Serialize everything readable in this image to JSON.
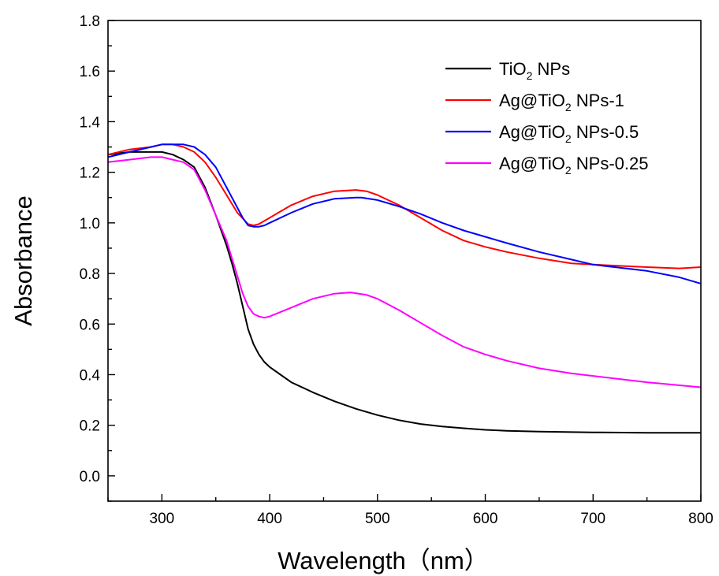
{
  "chart_data": {
    "type": "line",
    "xlabel": "Wavelength（nm）",
    "ylabel": "Absorbance",
    "xlim": [
      250,
      800
    ],
    "ylim": [
      -0.1,
      1.8
    ],
    "x_ticks": [
      "300",
      "400",
      "500",
      "600",
      "700",
      "800"
    ],
    "y_ticks": [
      "0.0",
      "0.2",
      "0.4",
      "0.6",
      "0.8",
      "1.0",
      "1.2",
      "1.4",
      "1.6",
      "1.8"
    ],
    "grid": false,
    "legend_position": "top-right",
    "series": [
      {
        "name": "TiO2 NPs",
        "label_main": "TiO",
        "label_sub": "2",
        "label_rest": " NPs",
        "color": "#000000",
        "x": [
          250,
          270,
          290,
          300,
          310,
          320,
          330,
          340,
          350,
          360,
          365,
          370,
          375,
          380,
          385,
          390,
          395,
          400,
          410,
          420,
          440,
          460,
          480,
          500,
          520,
          540,
          560,
          580,
          600,
          620,
          650,
          700,
          750,
          800
        ],
        "y": [
          1.27,
          1.28,
          1.28,
          1.28,
          1.27,
          1.25,
          1.22,
          1.14,
          1.03,
          0.91,
          0.84,
          0.76,
          0.67,
          0.58,
          0.52,
          0.48,
          0.45,
          0.43,
          0.4,
          0.37,
          0.33,
          0.295,
          0.265,
          0.24,
          0.22,
          0.205,
          0.195,
          0.188,
          0.182,
          0.178,
          0.175,
          0.172,
          0.17,
          0.17
        ]
      },
      {
        "name": "Ag@TiO2 NPs-1",
        "label_main": "Ag@TiO",
        "label_sub": "2",
        "label_rest": " NPs-1",
        "color": "#ff0000",
        "x": [
          250,
          270,
          290,
          300,
          310,
          320,
          330,
          340,
          350,
          360,
          370,
          380,
          385,
          390,
          400,
          420,
          440,
          460,
          480,
          490,
          500,
          520,
          540,
          560,
          580,
          600,
          620,
          650,
          680,
          700,
          750,
          780,
          800
        ],
        "y": [
          1.27,
          1.29,
          1.3,
          1.31,
          1.31,
          1.3,
          1.28,
          1.24,
          1.18,
          1.11,
          1.04,
          0.995,
          0.99,
          0.995,
          1.02,
          1.07,
          1.105,
          1.125,
          1.13,
          1.125,
          1.11,
          1.07,
          1.02,
          0.97,
          0.93,
          0.905,
          0.885,
          0.86,
          0.84,
          0.835,
          0.825,
          0.82,
          0.825
        ]
      },
      {
        "name": "Ag@TiO2 NPs-0.5",
        "label_main": "Ag@TiO",
        "label_sub": "2",
        "label_rest": " NPs-0.5",
        "color": "#0000ff",
        "x": [
          250,
          270,
          290,
          300,
          310,
          320,
          330,
          340,
          350,
          360,
          370,
          375,
          380,
          385,
          390,
          395,
          400,
          420,
          440,
          460,
          480,
          485,
          500,
          520,
          540,
          560,
          580,
          600,
          620,
          650,
          680,
          700,
          750,
          780,
          800
        ],
        "y": [
          1.26,
          1.28,
          1.3,
          1.31,
          1.31,
          1.31,
          1.3,
          1.27,
          1.22,
          1.14,
          1.06,
          1.02,
          0.99,
          0.985,
          0.985,
          0.99,
          1.0,
          1.04,
          1.075,
          1.095,
          1.1,
          1.1,
          1.09,
          1.065,
          1.035,
          1.0,
          0.97,
          0.945,
          0.92,
          0.885,
          0.855,
          0.835,
          0.81,
          0.785,
          0.76
        ]
      },
      {
        "name": "Ag@TiO2 NPs-0.25",
        "label_main": "Ag@TiO",
        "label_sub": "2",
        "label_rest": " NPs-0.25",
        "color": "#ff00ff",
        "x": [
          250,
          270,
          290,
          300,
          310,
          320,
          330,
          340,
          350,
          360,
          365,
          370,
          375,
          380,
          385,
          390,
          395,
          400,
          420,
          440,
          460,
          475,
          490,
          500,
          520,
          540,
          560,
          580,
          600,
          620,
          650,
          680,
          700,
          750,
          800
        ],
        "y": [
          1.24,
          1.25,
          1.26,
          1.26,
          1.25,
          1.24,
          1.21,
          1.13,
          1.03,
          0.93,
          0.86,
          0.79,
          0.72,
          0.67,
          0.64,
          0.63,
          0.625,
          0.63,
          0.665,
          0.7,
          0.72,
          0.725,
          0.715,
          0.7,
          0.655,
          0.605,
          0.555,
          0.51,
          0.48,
          0.455,
          0.425,
          0.405,
          0.395,
          0.37,
          0.35
        ]
      }
    ]
  }
}
